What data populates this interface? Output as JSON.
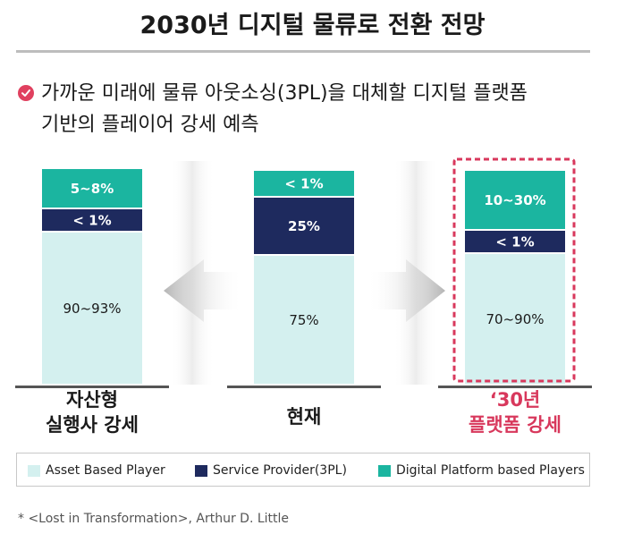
{
  "title": "2030년 디지털 물류로 전환 전망",
  "subtitle_line1": "가까운 미래에 물류 아웃소싱(3PL)을 대체할 디지털 플랫폼",
  "subtitle_line2": "기반의 플레이어 강세 예측",
  "source": "* <Lost in Transformation>, Arthur D. Little",
  "colors": {
    "asset": "#d4f0ef",
    "service": "#1e2a5e",
    "digital": "#1bb5a0",
    "highlight": "#d8385c",
    "arrow": "#b8b8b8"
  },
  "chart_data": {
    "type": "bar",
    "stacked": true,
    "categories": [
      "자산형\n실행사 강세",
      "현재",
      "‘30년\n플랫폼 강세"
    ],
    "series": [
      {
        "name": "Asset Based Player",
        "values": [
          91.5,
          75,
          80
        ],
        "labels": [
          "90~93%",
          "75%",
          "70~90%"
        ]
      },
      {
        "name": "Service Provider(3PL)",
        "values": [
          1,
          25,
          1
        ],
        "labels": [
          "< 1%",
          "25%",
          "< 1%"
        ]
      },
      {
        "name": "Digital Platform based Players",
        "values": [
          6.5,
          1,
          20
        ],
        "labels": [
          "5~8%",
          "< 1%",
          "10~30%"
        ]
      }
    ],
    "highlight_category": 2
  },
  "categories_display": [
    {
      "line1": "자산형",
      "line2": "실행사 강세"
    },
    {
      "line1": "현재",
      "line2": ""
    },
    {
      "line1": "‘30년",
      "line2": "플랫폼 강세"
    }
  ],
  "legend": [
    {
      "label": "Asset Based Player",
      "color_key": "asset"
    },
    {
      "label": "Service Provider(3PL)",
      "color_key": "service"
    },
    {
      "label": "Digital Platform based Players",
      "color_key": "digital"
    }
  ]
}
